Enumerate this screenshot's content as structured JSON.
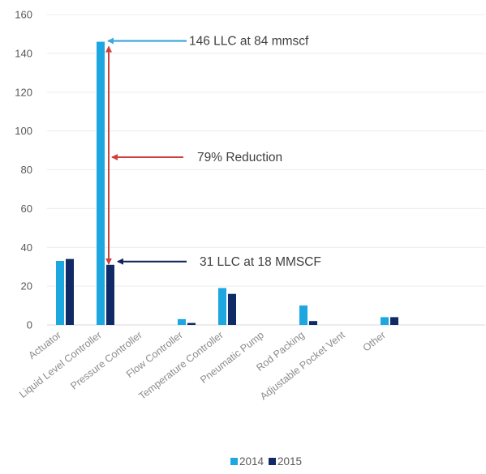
{
  "chart_data": {
    "type": "bar",
    "categories": [
      "Actuator",
      "Liquid Level Controller",
      "Pressure Controller",
      "Flow Controller",
      "Temperature Controller",
      "Pneumatic Pump",
      "Rod Packing",
      "Adjustable Pocket Vent",
      "Other"
    ],
    "series": [
      {
        "name": "2014",
        "values": [
          33,
          146,
          0,
          3,
          19,
          0,
          10,
          0,
          4
        ],
        "color": "#1ca7e0"
      },
      {
        "name": "2015",
        "values": [
          34,
          31,
          0,
          1,
          16,
          0,
          2,
          0,
          4
        ],
        "color": "#0f2a66"
      }
    ],
    "ylim": [
      0,
      160
    ],
    "yticks": [
      0,
      20,
      40,
      60,
      80,
      100,
      120,
      140,
      160
    ],
    "grid": true,
    "legend_position": "bottom",
    "annotations": [
      {
        "text": "146 LLC at 84 mmscf",
        "color": "#41a8dd",
        "points_to": {
          "series": "2014",
          "category": "Liquid Level Controller",
          "value": 146
        }
      },
      {
        "text": "79% Reduction",
        "color": "#d0403b",
        "range": [
          31,
          146
        ]
      },
      {
        "text": "31 LLC at 18 MMSCF",
        "color": "#15245e",
        "points_to": {
          "series": "2015",
          "category": "Liquid Level Controller",
          "value": 31
        }
      }
    ]
  }
}
